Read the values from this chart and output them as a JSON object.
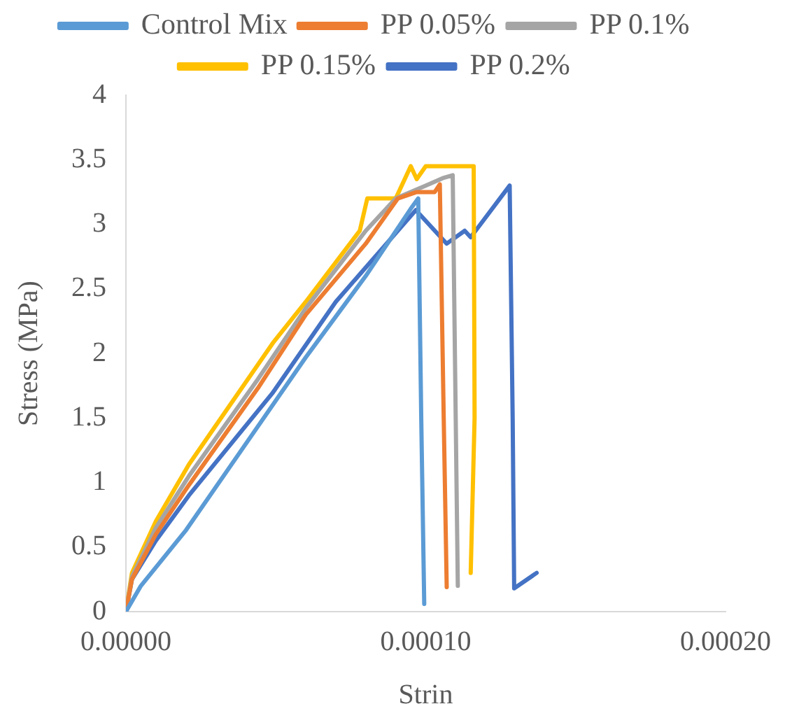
{
  "chart_data": {
    "type": "line",
    "xlabel": "Strin",
    "ylabel": "Stress (MPa)",
    "xlim": [
      0,
      0.0002
    ],
    "xticks": [
      {
        "value": 0,
        "label": "0.00000"
      },
      {
        "value": 0.0001,
        "label": "0.00010"
      },
      {
        "value": 0.0002,
        "label": "0.00020"
      }
    ],
    "ylim": [
      0,
      4
    ],
    "yticks": [
      0,
      0.5,
      1,
      1.5,
      2,
      2.5,
      3,
      3.5,
      4
    ],
    "grid": false,
    "legend": "top",
    "marker": "none",
    "line_style": "solid",
    "series": [
      {
        "name": "Control Mix",
        "color": "#5b9bd5",
        "x": [
          0,
          5e-06,
          2e-05,
          4e-05,
          6e-05,
          8e-05,
          9.5e-05,
          9.75e-05,
          9.85e-05,
          9.95e-05
        ],
        "values": [
          0,
          0.2,
          0.63,
          1.3,
          1.97,
          2.6,
          3.12,
          3.2,
          1.5,
          0.06
        ]
      },
      {
        "name": "PP 0.05%",
        "color": "#ed7d31",
        "x": [
          0,
          2e-06,
          1e-05,
          2.1e-05,
          4.4e-05,
          6e-05,
          8e-05,
          9.07e-05,
          9.7e-05,
          0.000103,
          0.0001047,
          0.000106,
          0.000107
        ],
        "values": [
          0,
          0.25,
          0.6,
          0.98,
          1.73,
          2.3,
          2.85,
          3.2,
          3.25,
          3.25,
          3.31,
          1.5,
          0.19
        ]
      },
      {
        "name": "PP 0.1%",
        "color": "#a5a5a5",
        "x": [
          0,
          2e-06,
          1e-05,
          2.1e-05,
          4.4e-05,
          6e-05,
          8e-05,
          9e-05,
          0.0001,
          0.000106,
          0.000109,
          0.00011,
          0.0001107
        ],
        "values": [
          0,
          0.27,
          0.65,
          1.05,
          1.8,
          2.35,
          2.95,
          3.2,
          3.3,
          3.36,
          3.38,
          1.5,
          0.2
        ]
      },
      {
        "name": "PP 0.15%",
        "color": "#ffc000",
        "x": [
          0,
          2e-06,
          1e-05,
          2.1e-05,
          4.9e-05,
          6e-05,
          7.8e-05,
          8.05e-05,
          9e-05,
          9.5e-05,
          9.7e-05,
          0.0001,
          0.000116,
          0.0001163,
          0.000115
        ],
        "values": [
          0,
          0.3,
          0.7,
          1.14,
          2.08,
          2.4,
          2.95,
          3.2,
          3.2,
          3.45,
          3.35,
          3.45,
          3.45,
          1.5,
          0.3
        ]
      },
      {
        "name": "PP 0.2%",
        "color": "#4472c4",
        "x": [
          0,
          2e-06,
          1e-05,
          2.1e-05,
          4.88e-05,
          7e-05,
          9.67e-05,
          0.000107,
          0.000113,
          0.000115,
          0.000128,
          0.000129,
          0.0001295,
          0.000137
        ],
        "values": [
          0,
          0.25,
          0.55,
          0.9,
          1.69,
          2.4,
          3.11,
          2.85,
          2.95,
          2.9,
          3.3,
          1.5,
          0.18,
          0.3
        ]
      }
    ]
  }
}
